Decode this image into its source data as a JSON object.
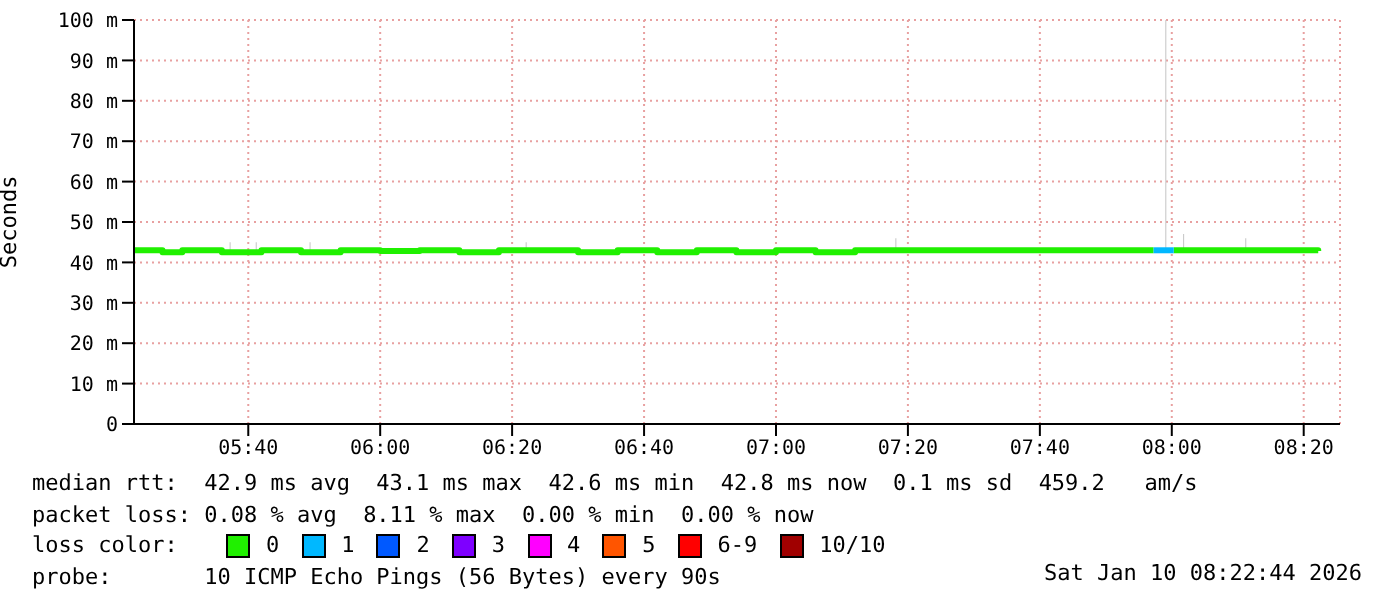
{
  "chart_data": {
    "type": "step",
    "ylabel": "Seconds",
    "xlim": [
      5.378,
      8.425
    ],
    "ylim": [
      0,
      100
    ],
    "xticks": [
      {
        "value": 5.6667,
        "label": "05:40"
      },
      {
        "value": 6,
        "label": "06:00"
      },
      {
        "value": 6.3333,
        "label": "06:20"
      },
      {
        "value": 6.6667,
        "label": "06:40"
      },
      {
        "value": 7,
        "label": "07:00"
      },
      {
        "value": 7.3333,
        "label": "07:20"
      },
      {
        "value": 7.6667,
        "label": "07:40"
      },
      {
        "value": 8,
        "label": "08:00"
      },
      {
        "value": 8.3333,
        "label": "08:20"
      }
    ],
    "yticks": [
      0,
      {
        "value": 10,
        "label": "10 m"
      },
      {
        "value": 20,
        "label": "20 m"
      },
      {
        "value": 30,
        "label": "30 m"
      },
      {
        "value": 40,
        "label": "40 m"
      },
      {
        "value": 50,
        "label": "50 m"
      },
      {
        "value": 60,
        "label": "60 m"
      },
      {
        "value": 70,
        "label": "70 m"
      },
      {
        "value": 80,
        "label": "80 m"
      },
      {
        "value": 90,
        "label": "90 m"
      },
      {
        "value": 100,
        "label": "100 m"
      }
    ],
    "grid": true,
    "legend": "bottom",
    "legend_title": "loss color:",
    "series": [
      {
        "type": "bar",
        "color": "#c8c8c8",
        "x": [
          5.621,
          5.687,
          5.823,
          6.369,
          7.303,
          7.985,
          8.03,
          8.187
        ],
        "base": [
          43,
          43,
          43,
          43,
          43,
          43,
          43,
          43
        ],
        "values": [
          2,
          2,
          2,
          2,
          3,
          57,
          4,
          3
        ]
      },
      {
        "name": "0",
        "color": "#20f000",
        "x": [
          5.378,
          5.45,
          5.5,
          5.6,
          5.7,
          5.8,
          5.9,
          6.0,
          6.1,
          6.2,
          6.3,
          6.4,
          6.5,
          6.6,
          6.7,
          6.8,
          6.9,
          7.0,
          7.1,
          7.2,
          7.3,
          7.5,
          7.7,
          7.954,
          7.98,
          8.005,
          8.1,
          8.2,
          8.3,
          8.37
        ],
        "values": [
          43,
          42.5,
          43,
          42.5,
          43,
          42.5,
          43,
          42.8,
          43,
          42.5,
          43,
          43,
          42.5,
          43,
          42.5,
          43,
          42.5,
          43,
          42.5,
          43,
          43,
          43,
          43,
          43,
          null,
          43,
          43,
          43,
          43,
          42.8
        ]
      },
      {
        "name": "1",
        "color": "#00b8ff",
        "x": [
          7.954,
          8.005
        ],
        "values": [
          43,
          43
        ]
      },
      {
        "name": "2",
        "color": "#0059ff"
      },
      {
        "name": "3",
        "color": "#7e00ff"
      },
      {
        "name": "4",
        "color": "#ff00ff"
      },
      {
        "name": "5",
        "color": "#ff5500"
      },
      {
        "name": "6-9",
        "color": "#ff0000"
      },
      {
        "name": "10/10",
        "color": "#a00000"
      }
    ],
    "annotations": [
      "median rtt:  42.9 ms avg  43.1 ms max  42.6 ms min  42.8 ms now  0.1 ms sd  459.2   am/s",
      "packet loss: 0.08 % avg  8.11 % max  0.00 % min  0.00 % now",
      "probe:       10 ICMP Echo Pings (56 Bytes) every 90s",
      "Sat Jan 10 08:22:44 2026"
    ]
  }
}
